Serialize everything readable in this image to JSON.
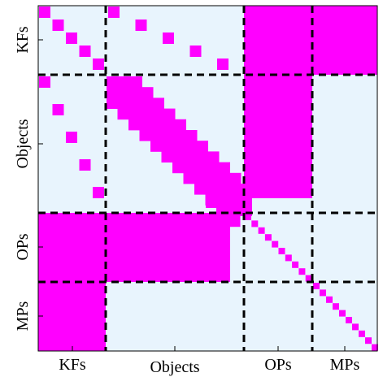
{
  "row_labels": [
    "KFs",
    "Objects",
    "OPs",
    "MPs"
  ],
  "col_labels": [
    "KFs",
    "Objects",
    "OPs",
    "MPs"
  ],
  "colors": {
    "background": "#e8f4fd",
    "nonzero": "#ff00ff",
    "separator": "#000000",
    "frame": "#000000"
  },
  "blocks": {
    "KFs-KFs": "diagonal",
    "KFs-Objects": "sparse",
    "KFs-OPs": "dense",
    "KFs-MPs": "dense",
    "Objects-KFs": "sparse",
    "Objects-Objects": "banded",
    "Objects-OPs": "dense",
    "Objects-MPs": "empty",
    "OPs-KFs": "dense",
    "OPs-Objects": "dense",
    "OPs-OPs": "diagonal",
    "OPs-MPs": "empty",
    "MPs-KFs": "dense",
    "MPs-Objects": "empty",
    "MPs-OPs": "empty",
    "MPs-MPs": "diagonal"
  }
}
